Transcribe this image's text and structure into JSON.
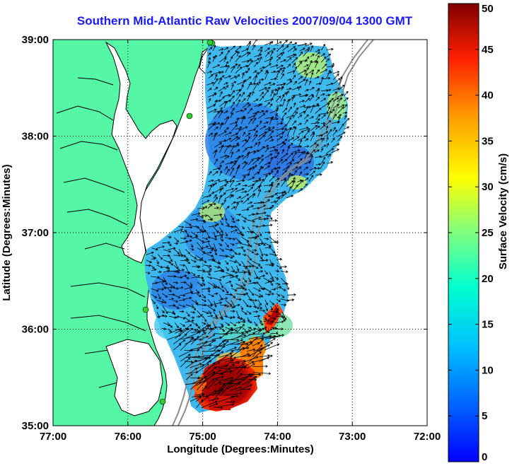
{
  "title": "Southern Mid-Atlantic Raw Velocities 2007/09/04 1300 GMT",
  "map": {
    "x_axis_label": "Longitude (Degrees:Minutes)",
    "y_axis_label": "Latitude (Degrees:Minutes)",
    "lon_range": [
      -77,
      -72
    ],
    "lat_range": [
      35,
      39
    ],
    "x_ticks": [
      "77:00",
      "76:00",
      "75:00",
      "74:00",
      "73:00",
      "72:00"
    ],
    "y_ticks": [
      "39:00",
      "38:00",
      "37:00",
      "36:00",
      "35:00"
    ],
    "grid": "dotted",
    "land_color": "#55f7a6",
    "water_color": "#ffffff",
    "stations": 5,
    "station_color": "#33cc33"
  },
  "colorbar": {
    "label": "Surface Velocity (cm/s)",
    "range": [
      0,
      50
    ],
    "ticks": [
      "50",
      "45",
      "40",
      "35",
      "30",
      "25",
      "20",
      "15",
      "10",
      "5",
      "0"
    ],
    "colormap": "jet"
  }
}
